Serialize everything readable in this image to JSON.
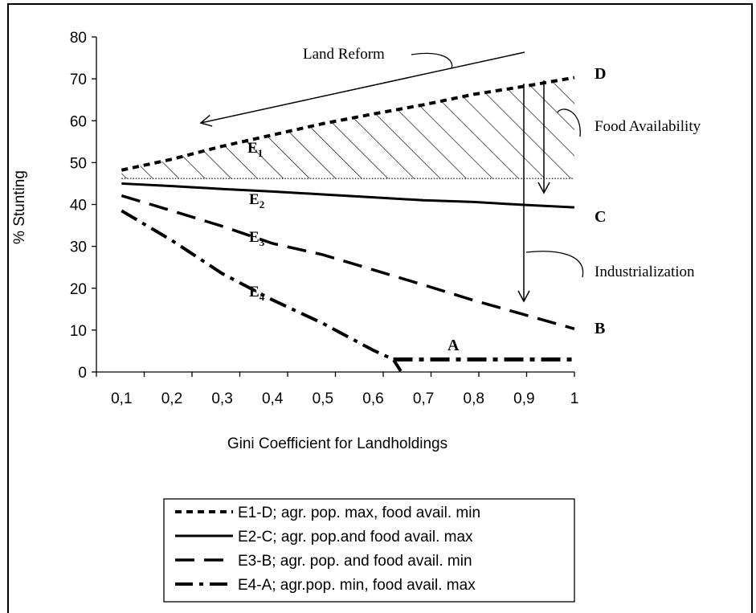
{
  "chart_data": {
    "type": "line",
    "xlabel": "Gini Coefficient for Landholdings",
    "ylabel": "% Stunting",
    "xlim": [
      0.05,
      1.0
    ],
    "ylim": [
      0,
      80
    ],
    "x_ticks": [
      "0,1",
      "0,2",
      "0,3",
      "0,4",
      "0,5",
      "0,6",
      "0,7",
      "0,8",
      "0,9",
      "1"
    ],
    "y_ticks": [
      "0",
      "10",
      "20",
      "30",
      "40",
      "50",
      "60",
      "70",
      "80"
    ],
    "series": [
      {
        "name": "E1-D; agr. pop. max, food avail. min",
        "style": "short-dash",
        "x": [
          0.1,
          0.2,
          0.3,
          0.4,
          0.5,
          0.6,
          0.7,
          0.8,
          0.9,
          1.0
        ],
        "y": [
          48.2,
          50.8,
          53.9,
          56.6,
          59.3,
          61.6,
          63.8,
          66.3,
          68.2,
          70.3
        ]
      },
      {
        "name": "E2-C; agr. pop.and food avail. max",
        "style": "solid",
        "x": [
          0.1,
          0.2,
          0.3,
          0.4,
          0.5,
          0.6,
          0.7,
          0.8,
          0.9,
          1.0
        ],
        "y": [
          45.0,
          44.4,
          43.7,
          43.1,
          42.4,
          41.7,
          41.0,
          40.6,
          39.9,
          39.3
        ]
      },
      {
        "name": "E3-B; agr. pop. and food avail. min",
        "style": "long-dash",
        "x": [
          0.1,
          0.2,
          0.3,
          0.4,
          0.5,
          0.6,
          0.7,
          0.8,
          0.9,
          1.0
        ],
        "y": [
          42.1,
          38.5,
          34.8,
          30.7,
          28.0,
          24.4,
          20.8,
          17.1,
          13.7,
          10.3
        ]
      },
      {
        "name": "E4-A; agr.pop. min, food avail. max",
        "style": "dash-dot",
        "x": [
          0.1,
          0.2,
          0.3,
          0.4,
          0.5,
          0.6,
          0.64,
          0.655
        ],
        "y": [
          38.5,
          31.4,
          23.5,
          17.2,
          11.6,
          5.2,
          3.0,
          0.2
        ]
      },
      {
        "name": "A",
        "style": "dash-dot-bold",
        "x": [
          0.64,
          1.0
        ],
        "y": [
          3.0,
          3.0
        ]
      }
    ],
    "reference_line": {
      "y": 46.2,
      "x_range": [
        0.1,
        1.0
      ],
      "style": "dotted"
    },
    "hatched_region": {
      "between": [
        "E1-D",
        "reference_line"
      ]
    },
    "line_end_labels": [
      "D",
      "C",
      "B",
      "A"
    ],
    "curve_labels": [
      {
        "main": "E",
        "sub": "1"
      },
      {
        "main": "E",
        "sub": "2"
      },
      {
        "main": "E",
        "sub": "3"
      },
      {
        "main": "E",
        "sub": "4"
      }
    ],
    "annotations": [
      "Land Reform",
      "Food Availability",
      "Industrialization"
    ],
    "grid": false,
    "legend": {
      "position": "bottom"
    }
  }
}
